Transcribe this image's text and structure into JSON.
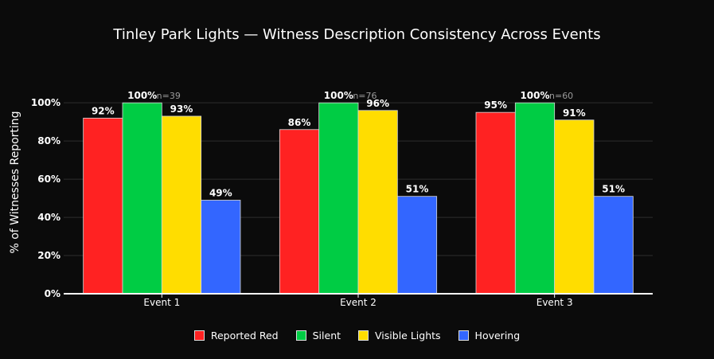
{
  "chart_data": {
    "type": "bar",
    "title": "Tinley Park Lights — Witness Description Consistency Across Events",
    "xlabel": "",
    "ylabel": "% of Witnesses Reporting",
    "categories": [
      "Event 1",
      "Event 2",
      "Event 3"
    ],
    "ylim": [
      0,
      108
    ],
    "yticks": [
      0,
      20,
      40,
      60,
      80,
      100
    ],
    "ytick_labels": [
      "0%",
      "20%",
      "40%",
      "60%",
      "80%",
      "100%"
    ],
    "series": [
      {
        "name": "Reported Red",
        "color": "#ff2222",
        "values": [
          92,
          86,
          95
        ],
        "labels": [
          "92%",
          "86%",
          "95%"
        ]
      },
      {
        "name": "Silent",
        "color": "#00cc44",
        "values": [
          100,
          100,
          100
        ],
        "labels": [
          "100%",
          "100%",
          "100%"
        ]
      },
      {
        "name": "Visible Lights",
        "color": "#ffdd00",
        "values": [
          93,
          96,
          91
        ],
        "labels": [
          "93%",
          "96%",
          "91%"
        ]
      },
      {
        "name": "Hovering",
        "color": "#3366ff",
        "values": [
          49,
          51,
          51
        ],
        "labels": [
          "49%",
          "51%",
          "51%"
        ]
      }
    ],
    "annotations": [
      "n=39",
      "n=76",
      "n=60"
    ],
    "grid": true,
    "legend": "bottom-center"
  }
}
